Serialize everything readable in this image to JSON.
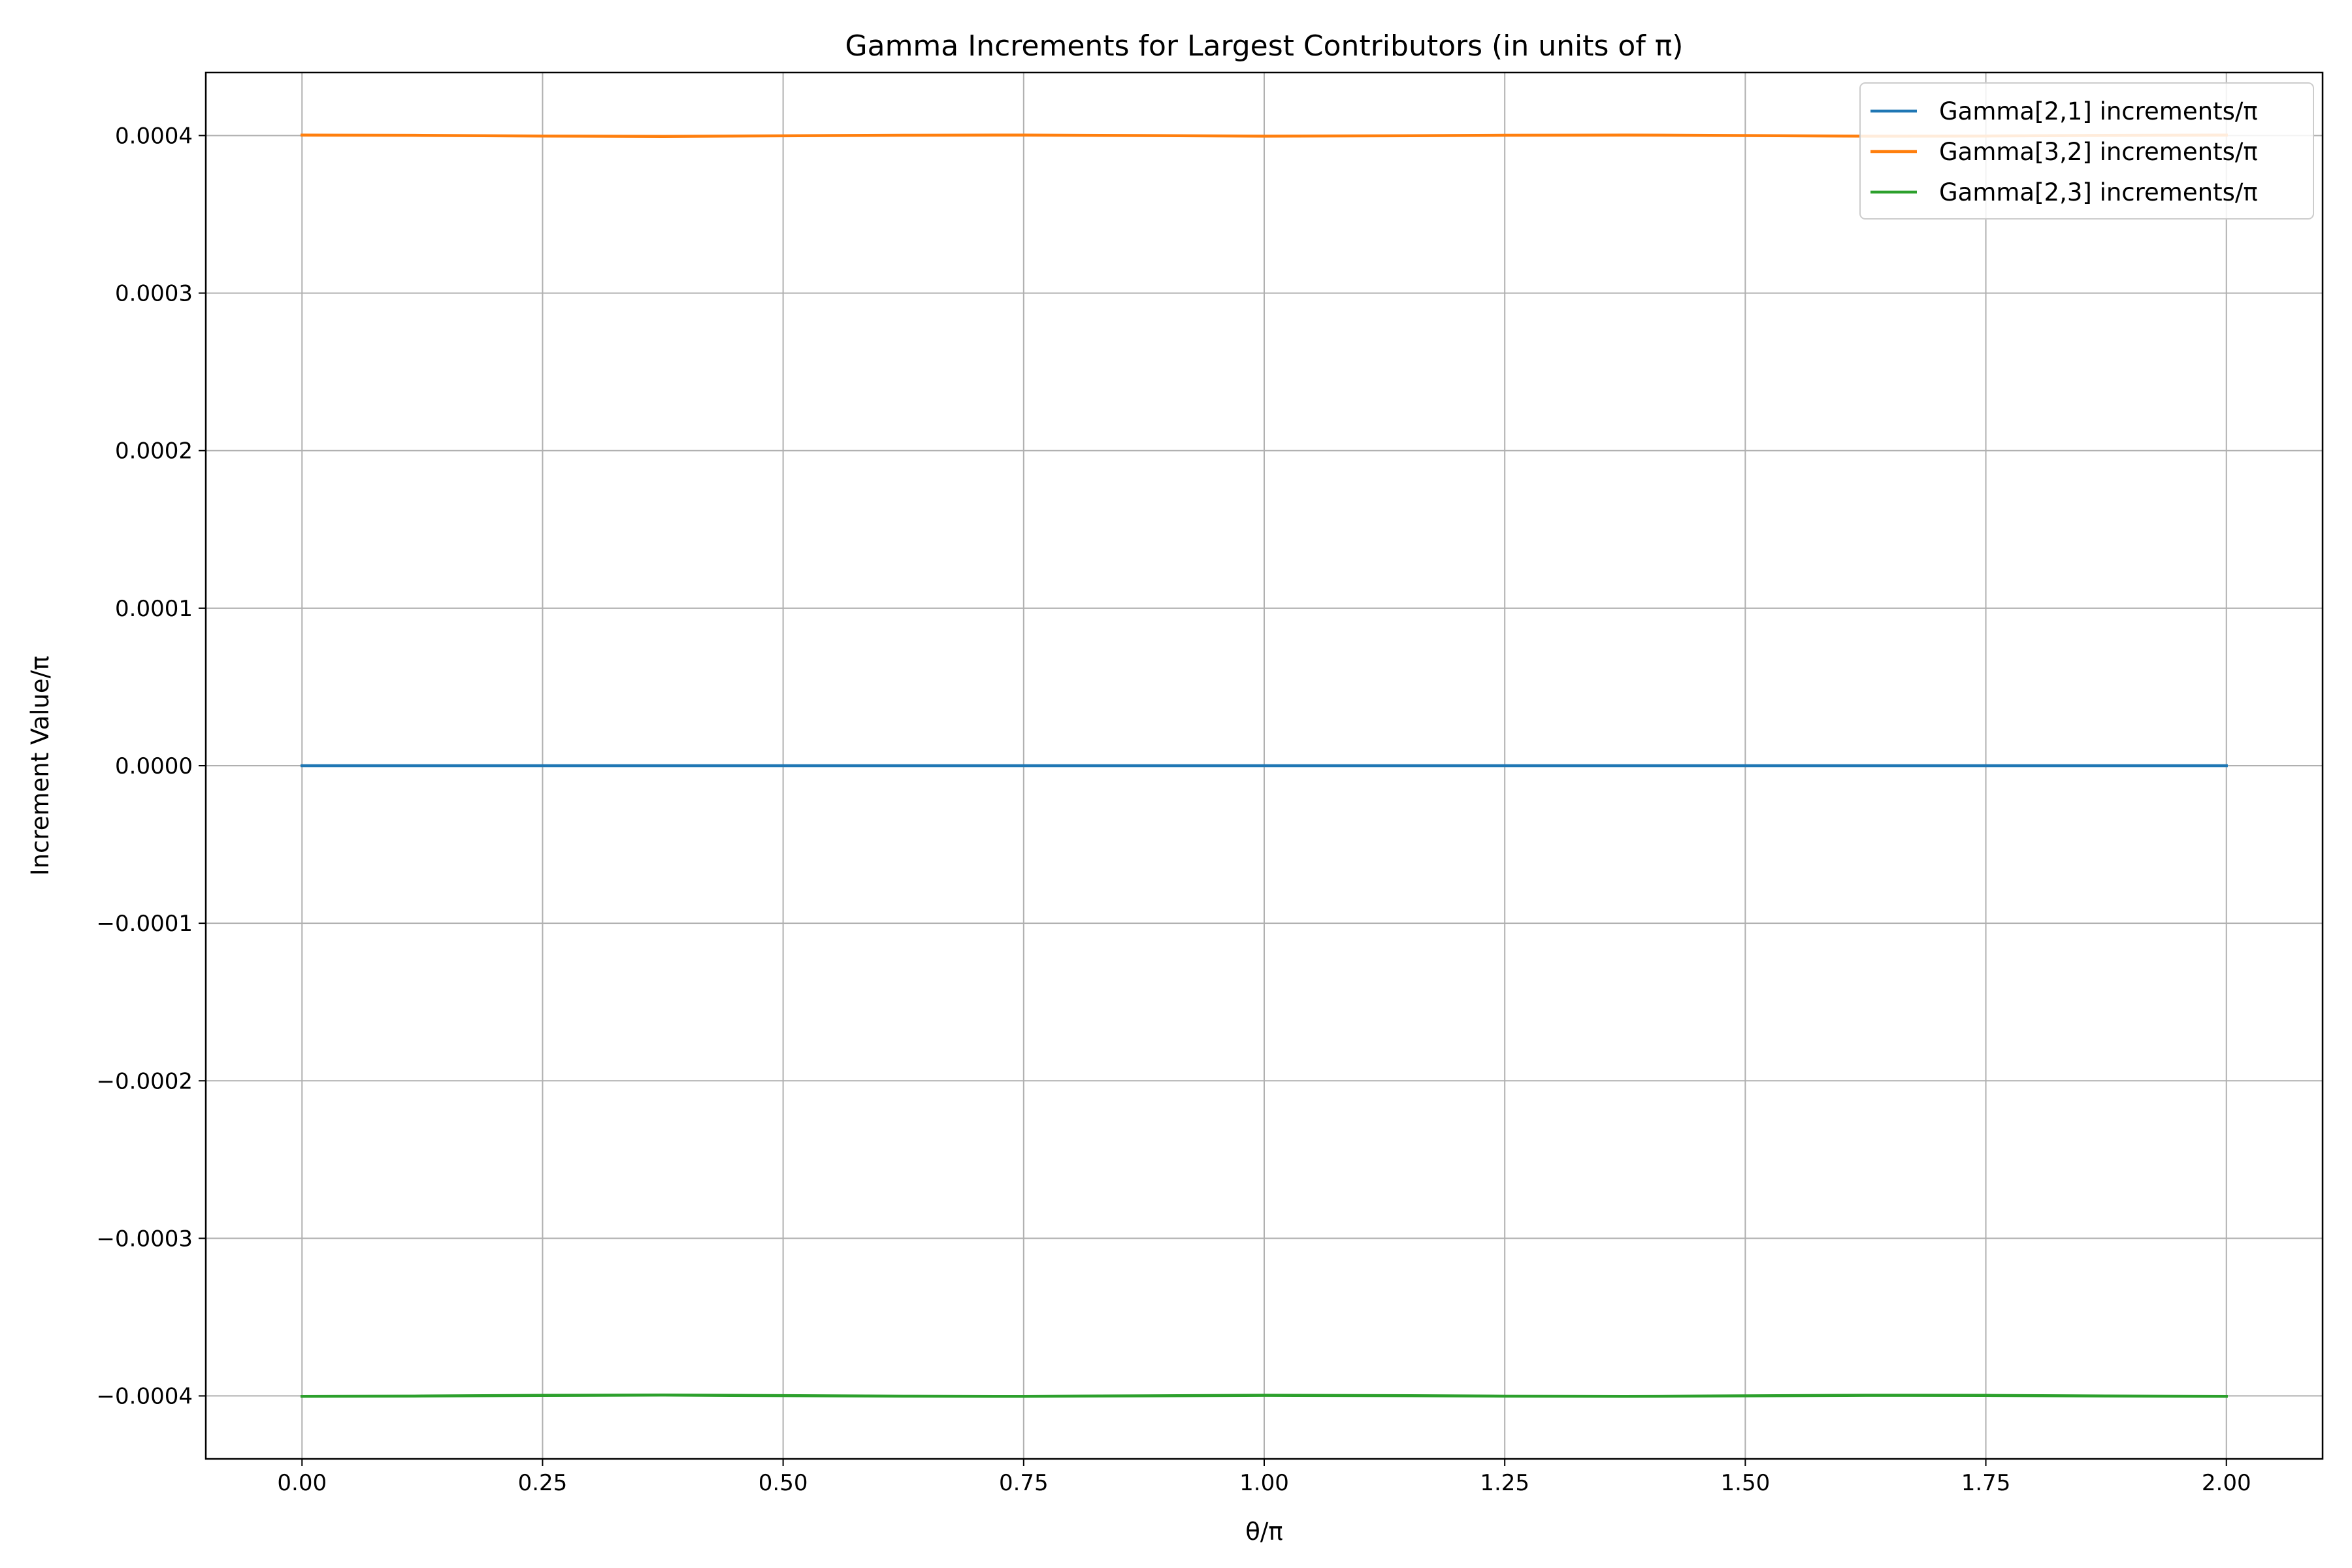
{
  "chart_data": {
    "type": "line",
    "title": "Gamma Increments for Largest Contributors (in units of π)",
    "xlabel": "θ/π",
    "ylabel": "Increment Value/π",
    "xlim": [
      -0.1,
      2.1
    ],
    "ylim": [
      -0.00044,
      0.00044
    ],
    "xticks": [
      0.0,
      0.25,
      0.5,
      0.75,
      1.0,
      1.25,
      1.5,
      1.75,
      2.0
    ],
    "xtick_labels": [
      "0.00",
      "0.25",
      "0.50",
      "0.75",
      "1.00",
      "1.25",
      "1.50",
      "1.75",
      "2.00"
    ],
    "yticks": [
      -0.0004,
      -0.0003,
      -0.0002,
      -0.0001,
      0.0,
      0.0001,
      0.0002,
      0.0003,
      0.0004
    ],
    "ytick_labels": [
      "−0.0004",
      "−0.0003",
      "−0.0002",
      "−0.0001",
      "0.0000",
      "0.0001",
      "0.0002",
      "0.0003",
      "0.0004"
    ],
    "grid": true,
    "legend_position": "top-right",
    "x": [
      0.0,
      0.125,
      0.25,
      0.375,
      0.5,
      0.625,
      0.75,
      0.875,
      1.0,
      1.125,
      1.25,
      1.375,
      1.5,
      1.625,
      1.75,
      1.875,
      2.0
    ],
    "series": [
      {
        "name": "Gamma[2,1] increments/π",
        "color": "#1f77b4",
        "values": [
          0.0,
          0.0,
          0.0,
          0.0,
          0.0,
          0.0,
          0.0,
          0.0,
          0.0,
          0.0,
          0.0,
          0.0,
          0.0,
          0.0,
          0.0,
          0.0,
          0.0
        ]
      },
      {
        "name": "Gamma[3,2] increments/π",
        "color": "#ff7f0e",
        "values": [
          0.0004003,
          0.0004001,
          0.0003997,
          0.0003995,
          0.0003998,
          0.0004002,
          0.0004003,
          0.0004,
          0.0003996,
          0.0003998,
          0.0004002,
          0.0004003,
          0.0004,
          0.0003996,
          0.0003997,
          0.0004001,
          0.0004003
        ]
      },
      {
        "name": "Gamma[2,3] increments/π",
        "color": "#2ca02c",
        "values": [
          -0.0004003,
          -0.0004001,
          -0.0003997,
          -0.0003995,
          -0.0003998,
          -0.0004002,
          -0.0004003,
          -0.0004,
          -0.0003996,
          -0.0003998,
          -0.0004002,
          -0.0004003,
          -0.0004,
          -0.0003996,
          -0.0003997,
          -0.0004001,
          -0.0004003
        ]
      }
    ]
  }
}
